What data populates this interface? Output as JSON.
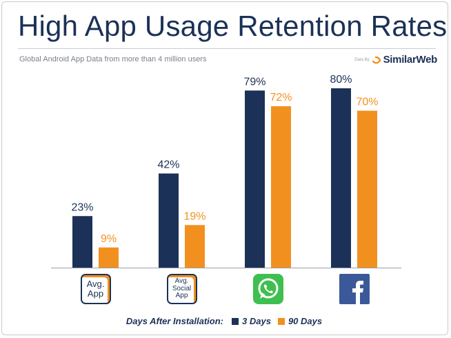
{
  "header": {
    "title": "High App Usage Retention Rates",
    "subtitle": "Global Android App Data from more than 4 million users",
    "credit_prefix": "Data By",
    "credit_brand": "SimilarWeb"
  },
  "colors": {
    "navy": "#1b3157",
    "orange": "#f2901f"
  },
  "icons": [
    {
      "name": "avg-app-icon",
      "line1": "Avg.",
      "line2": "App",
      "line3": ""
    },
    {
      "name": "avg-social-app-icon",
      "line1": "Avg.",
      "line2": "Social",
      "line3": "App"
    },
    {
      "name": "whatsapp-icon"
    },
    {
      "name": "facebook-icon"
    }
  ],
  "legend": {
    "title": "Days After Installation:",
    "items": [
      "3 Days",
      "90 Days"
    ]
  },
  "chart_data": {
    "type": "bar",
    "title": "High App Usage Retention Rates",
    "subtitle": "Global Android App Data from more than 4 million users",
    "categories": [
      "Avg. App",
      "Avg. Social App",
      "WhatsApp",
      "Facebook"
    ],
    "series": [
      {
        "name": "3 Days",
        "color": "#1b3157",
        "values": [
          23,
          42,
          79,
          80
        ],
        "labels": [
          "23%",
          "42%",
          "79%",
          "80%"
        ]
      },
      {
        "name": "90 Days",
        "color": "#f2901f",
        "values": [
          9,
          19,
          72,
          70
        ],
        "labels": [
          "9%",
          "19%",
          "72%",
          "70%"
        ]
      }
    ],
    "ylim": [
      0,
      100
    ],
    "grid": false,
    "legend_position": "bottom"
  }
}
